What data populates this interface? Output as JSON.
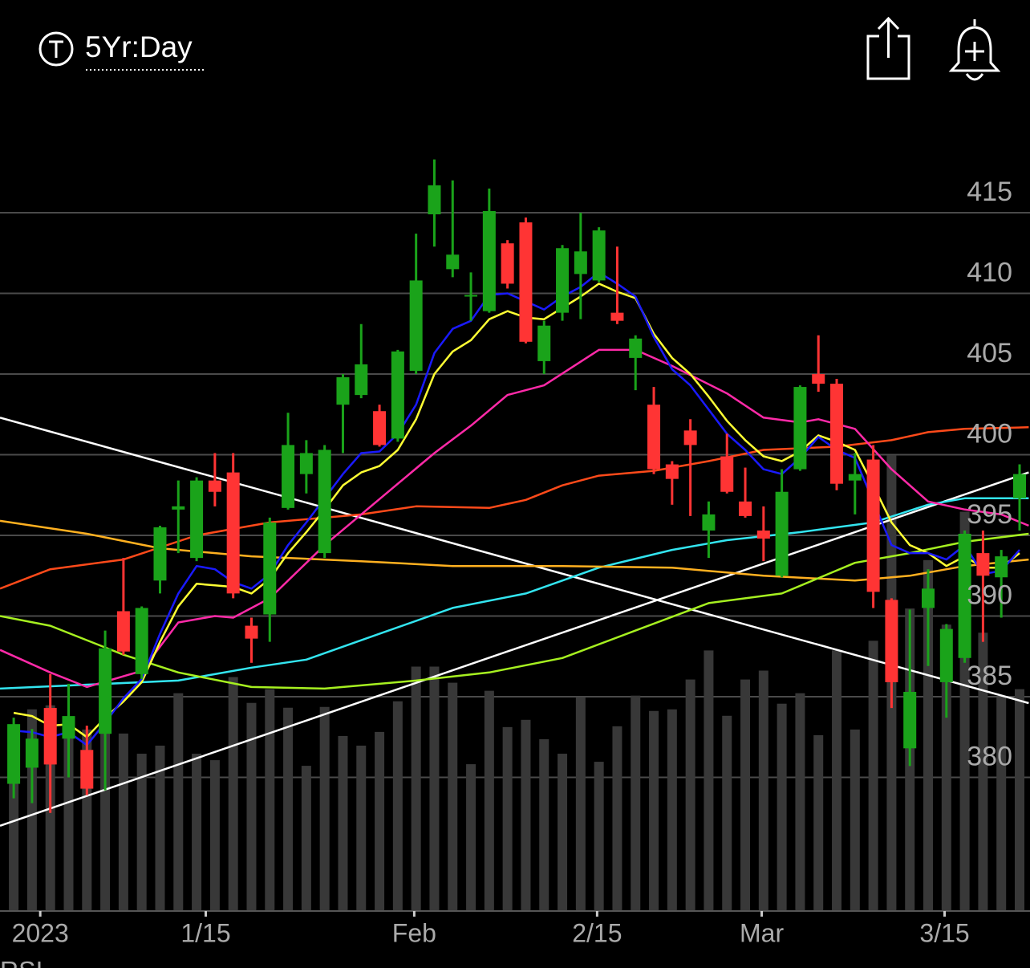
{
  "chart_data": {
    "type": "candlestick",
    "title": "5Yr:Day",
    "lower_panel_title": "RSI",
    "up_color": "#1aa31a",
    "down_color": "#ff3434",
    "volume_color": "#383838",
    "x": [
      0,
      1,
      2,
      3,
      4,
      5,
      6,
      7,
      8,
      9,
      10,
      11,
      12,
      13,
      14,
      15,
      16,
      17,
      18,
      19,
      20,
      21,
      22,
      23,
      24,
      25,
      26,
      27,
      28,
      29,
      30,
      31,
      32,
      33,
      34,
      35,
      36,
      37,
      38,
      39,
      40,
      41,
      42,
      43,
      44,
      45,
      46,
      47,
      48,
      49,
      50,
      51,
      52,
      53,
      54,
      55
    ],
    "open": [
      379.6,
      380.6,
      384.3,
      382.4,
      381.7,
      382.7,
      390.3,
      386.4,
      392.2,
      396.6,
      393.6,
      398.4,
      398.9,
      389.4,
      390.1,
      396.7,
      398.8,
      393.9,
      403.1,
      403.7,
      402.7,
      401.0,
      405.2,
      414.9,
      411.5,
      409.8,
      408.9,
      413.1,
      414.4,
      405.8,
      408.8,
      411.2,
      410.8,
      408.8,
      406.0,
      403.1,
      399.4,
      401.5,
      395.3,
      399.9,
      397.1,
      395.3,
      392.5,
      399.1,
      405.0,
      404.4,
      398.4,
      399.7,
      391.0,
      381.8,
      390.5,
      385.9,
      387.4,
      393.9,
      392.4,
      397.3
    ],
    "high": [
      383.7,
      383.0,
      386.4,
      385.8,
      383.2,
      389.1,
      393.6,
      390.6,
      395.6,
      398.4,
      398.6,
      400.1,
      400.1,
      389.9,
      396.1,
      402.6,
      400.9,
      400.6,
      405.0,
      408.1,
      403.1,
      406.5,
      413.7,
      418.3,
      417.0,
      411.3,
      416.5,
      413.3,
      414.7,
      408.3,
      413.0,
      415.0,
      414.1,
      412.9,
      407.4,
      404.2,
      399.6,
      402.2,
      397.1,
      401.3,
      399.2,
      396.8,
      399.1,
      404.3,
      407.4,
      404.7,
      400.1,
      400.6,
      391.1,
      390.4,
      392.9,
      389.5,
      395.3,
      395.3,
      394.1,
      399.4
    ],
    "low": [
      378.7,
      378.4,
      377.8,
      380.0,
      378.9,
      379.2,
      387.6,
      386.1,
      391.4,
      393.9,
      393.4,
      396.8,
      391.1,
      387.1,
      388.4,
      396.6,
      397.6,
      393.6,
      400.1,
      403.5,
      400.5,
      400.8,
      405.0,
      412.9,
      411.0,
      408.3,
      408.8,
      410.3,
      406.9,
      405.0,
      408.3,
      408.4,
      410.7,
      408.1,
      404.0,
      398.8,
      396.9,
      396.2,
      393.6,
      397.6,
      396.1,
      393.4,
      392.4,
      399.0,
      403.9,
      397.8,
      396.3,
      390.5,
      384.3,
      380.7,
      386.9,
      383.7,
      387.1,
      388.4,
      389.9,
      395.3
    ],
    "close": [
      383.3,
      382.4,
      380.8,
      383.8,
      379.3,
      388.0,
      387.8,
      390.5,
      395.5,
      396.8,
      398.4,
      397.7,
      391.4,
      388.6,
      395.8,
      400.6,
      400.1,
      400.3,
      404.8,
      405.6,
      400.6,
      406.4,
      410.8,
      416.7,
      412.4,
      409.9,
      415.1,
      410.6,
      407.0,
      408.0,
      412.8,
      412.6,
      413.9,
      408.3,
      407.2,
      399.1,
      398.5,
      400.6,
      396.3,
      397.7,
      396.2,
      394.8,
      397.7,
      404.2,
      404.4,
      398.2,
      398.8,
      391.5,
      385.9,
      385.3,
      391.7,
      389.2,
      395.1,
      392.5,
      393.7,
      398.8
    ],
    "volume": [
      23,
      25,
      25.5,
      23.5,
      22.5,
      24.5,
      22,
      19.5,
      20.5,
      27,
      19.5,
      18.7,
      29,
      25.8,
      27.5,
      25.2,
      18,
      25.3,
      21.7,
      20.5,
      22.2,
      26,
      30.3,
      30.3,
      28.3,
      18.2,
      27.3,
      22.8,
      23.7,
      21.3,
      19.5,
      26.5,
      18.5,
      22.9,
      26.7,
      24.8,
      25,
      28.7,
      32.3,
      24.2,
      28.7,
      29.8,
      25.7,
      27,
      21.8,
      32.3,
      22.5,
      33.5,
      56.5,
      37.5,
      43.5,
      35.5,
      49.5,
      34.5,
      26.5,
      27.5
    ],
    "volume_lim": [
      0,
      100
    ],
    "xlim": [
      -0.75,
      55.57
    ],
    "xticks": [
      {
        "value": 1.45,
        "label": "2023"
      },
      {
        "value": 10.5,
        "label": "1/15"
      },
      {
        "value": 21.9,
        "label": "Feb"
      },
      {
        "value": 31.9,
        "label": "2/15"
      },
      {
        "value": 40.9,
        "label": "Mar"
      },
      {
        "value": 50.9,
        "label": "3/15"
      }
    ],
    "ylim": [
      372,
      422
    ],
    "yticks": [
      380,
      385,
      390,
      395,
      400,
      405,
      410,
      415
    ],
    "grid": true,
    "trendlines": [
      {
        "color": "#ffffff",
        "x": [
          -0.75,
          55.5
        ],
        "values": [
          402.3,
          384.6
        ]
      },
      {
        "color": "#ffffff",
        "x": [
          -0.75,
          55.5
        ],
        "values": [
          377.0,
          398.9
        ]
      }
    ],
    "lines": [
      {
        "color": "#33e5f0",
        "x": [
          -0.75,
          9,
          13,
          16,
          20,
          24,
          28,
          32,
          36,
          39,
          43,
          47,
          50,
          52,
          55.5
        ],
        "values": [
          385.5,
          386.0,
          386.8,
          387.3,
          388.9,
          390.5,
          391.4,
          393.0,
          394.1,
          394.7,
          395.2,
          395.8,
          396.9,
          397.3,
          397.3
        ]
      },
      {
        "color": "#ffb020",
        "x": [
          -0.75,
          4,
          8,
          13,
          19,
          24,
          30,
          36,
          41,
          46,
          49,
          52,
          55.5
        ],
        "values": [
          395.9,
          395.1,
          394.2,
          393.7,
          393.4,
          393.1,
          393.1,
          393.0,
          392.5,
          392.2,
          392.5,
          393.1,
          393.5
        ]
      },
      {
        "color": "#a6f020",
        "x": [
          -0.75,
          2,
          6,
          9,
          13,
          17,
          22,
          26,
          30,
          34,
          38,
          42,
          46,
          49,
          52,
          55.5
        ],
        "values": [
          390.0,
          389.4,
          387.6,
          386.5,
          385.6,
          385.5,
          386.0,
          386.5,
          387.4,
          389.1,
          390.8,
          391.4,
          393.3,
          393.9,
          394.6,
          395.1
        ]
      },
      {
        "color": "#ff4a1a",
        "x": [
          -0.75,
          2,
          6,
          10,
          14,
          19,
          22,
          26,
          28,
          30,
          32,
          35,
          38,
          41,
          45,
          48,
          50,
          52,
          55.5
        ],
        "values": [
          391.7,
          392.9,
          393.5,
          395.0,
          395.8,
          396.3,
          396.8,
          396.7,
          397.2,
          398.1,
          398.7,
          399.0,
          399.6,
          400.3,
          400.5,
          400.9,
          401.4,
          401.6,
          401.7
        ]
      },
      {
        "color": "#ff2aa8",
        "x": [
          -0.75,
          2,
          4,
          7,
          9,
          11,
          12,
          14,
          17,
          19,
          21,
          23,
          25,
          27,
          29,
          32,
          34,
          36,
          39,
          41,
          43,
          44,
          46,
          48,
          50,
          52,
          54,
          55.5
        ],
        "values": [
          387.9,
          386.5,
          385.6,
          386.6,
          389.6,
          390.0,
          389.9,
          391.1,
          394.4,
          396.3,
          398.2,
          400.1,
          401.8,
          403.7,
          404.3,
          406.5,
          406.5,
          405.5,
          403.8,
          402.3,
          402.0,
          402.2,
          401.6,
          399.1,
          397.1,
          396.6,
          396.3,
          395.6
        ]
      },
      {
        "color": "#ffff33",
        "values": [
          384.0,
          383.8,
          383.2,
          383.3,
          382.5,
          383.7,
          384.7,
          385.9,
          388.4,
          390.6,
          392.0,
          391.9,
          391.8,
          391.4,
          392.3,
          393.9,
          395.2,
          396.6,
          398.1,
          398.9,
          399.3,
          400.3,
          402.2,
          405.0,
          406.4,
          407.1,
          408.4,
          408.9,
          408.5,
          408.4,
          409.1,
          409.8,
          410.6,
          410.1,
          409.7,
          407.5,
          406.0,
          405.0,
          403.6,
          402.1,
          400.9,
          399.9,
          399.6,
          400.2,
          401.2,
          400.8,
          400.3,
          398.1,
          395.8,
          394.4,
          393.9,
          393.1,
          393.7,
          393.0,
          393.0,
          393.9
        ]
      },
      {
        "color": "#1a1aff",
        "values": [
          382.9,
          382.8,
          382.5,
          382.8,
          382.0,
          383.4,
          384.9,
          386.1,
          388.9,
          391.4,
          393.1,
          392.9,
          392.1,
          391.7,
          392.6,
          394.4,
          395.8,
          397.3,
          398.8,
          400.1,
          400.2,
          401.3,
          403.1,
          406.3,
          407.8,
          408.3,
          409.9,
          410.0,
          409.5,
          409.0,
          409.8,
          410.4,
          411.3,
          410.6,
          409.8,
          407.3,
          405.3,
          404.3,
          402.8,
          401.3,
          400.3,
          399.1,
          398.8,
          399.8,
          401.1,
          400.3,
          399.8,
          397.1,
          394.4,
          393.9,
          393.9,
          393.5,
          394.4,
          392.6,
          392.8,
          394.1
        ]
      }
    ]
  }
}
